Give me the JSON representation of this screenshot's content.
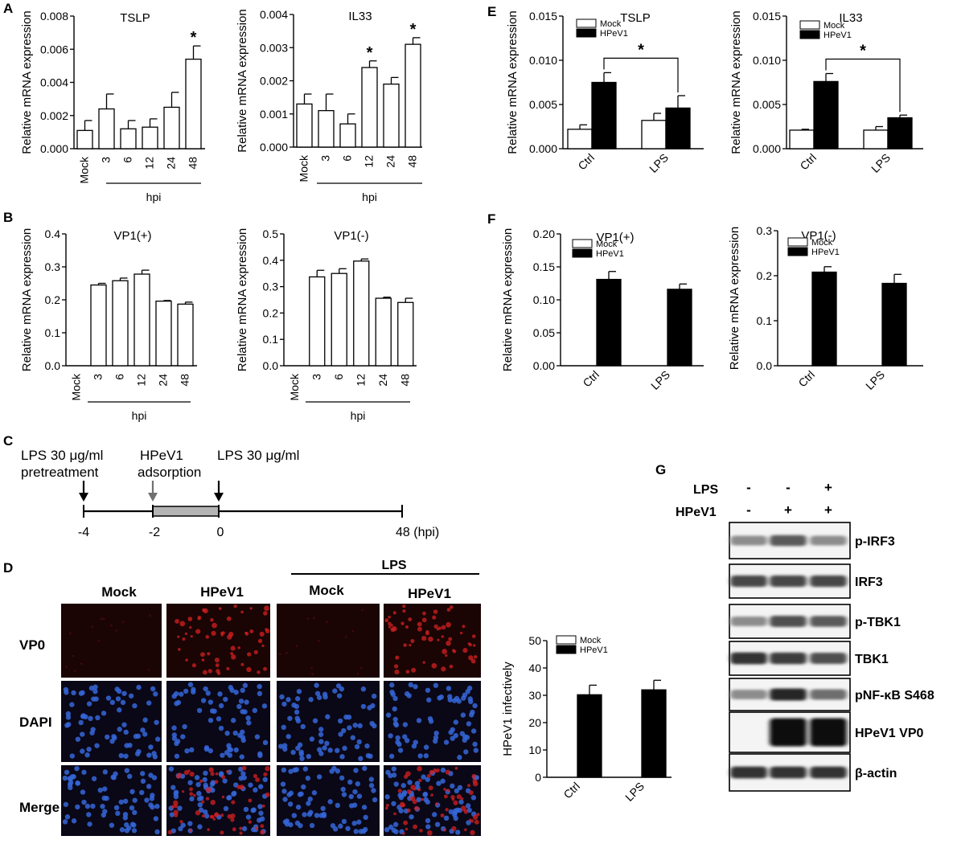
{
  "panels": {
    "A": "A",
    "B": "B",
    "C": "C",
    "D": "D",
    "E": "E",
    "F": "F",
    "G": "G"
  },
  "chart_data": [
    {
      "id": "A1",
      "type": "bar",
      "title": "TSLP",
      "ylabel": "Relative mRNA expression",
      "xlabel": "hpi",
      "categories": [
        "Mock",
        "3",
        "6",
        "12",
        "24",
        "48"
      ],
      "values": [
        0.0011,
        0.0024,
        0.0012,
        0.0013,
        0.0025,
        0.0054
      ],
      "errors": [
        0.0006,
        0.0009,
        0.0005,
        0.0005,
        0.0009,
        0.0008
      ],
      "significance": [
        "",
        "",
        "",
        "",
        "",
        "*"
      ],
      "ylim": [
        0,
        0.008
      ],
      "yticks": [
        "0.000",
        "0.002",
        "0.004",
        "0.006",
        "0.008"
      ]
    },
    {
      "id": "A2",
      "type": "bar",
      "title": "IL33",
      "ylabel": "Relative mRNA expression",
      "xlabel": "hpi",
      "categories": [
        "Mock",
        "3",
        "6",
        "12",
        "24",
        "48"
      ],
      "values": [
        0.0013,
        0.0011,
        0.0007,
        0.0024,
        0.0019,
        0.0031
      ],
      "errors": [
        0.0003,
        0.0005,
        0.0003,
        0.0002,
        0.0002,
        0.0002
      ],
      "significance": [
        "",
        "",
        "",
        "*",
        "",
        "*"
      ],
      "ylim": [
        0,
        0.004
      ],
      "yticks": [
        "0.000",
        "0.001",
        "0.002",
        "0.003",
        "0.004"
      ]
    },
    {
      "id": "B1",
      "type": "bar",
      "title": "VP1(+)",
      "ylabel": "Relative mRNA expression",
      "xlabel": "hpi",
      "categories": [
        "Mock",
        "3",
        "6",
        "12",
        "24",
        "48"
      ],
      "values": [
        0,
        0.245,
        0.258,
        0.278,
        0.196,
        0.187
      ],
      "errors": [
        0,
        0.005,
        0.008,
        0.012,
        0.002,
        0.006
      ],
      "ylim": [
        0,
        0.4
      ],
      "yticks": [
        "0.0",
        "0.1",
        "0.2",
        "0.3",
        "0.4"
      ]
    },
    {
      "id": "B2",
      "type": "bar",
      "title": "VP1(-)",
      "ylabel": "Relative mRNA expression",
      "xlabel": "hpi",
      "categories": [
        "Mock",
        "3",
        "6",
        "12",
        "24",
        "48"
      ],
      "values": [
        0,
        0.337,
        0.35,
        0.397,
        0.256,
        0.24
      ],
      "errors": [
        0,
        0.025,
        0.018,
        0.008,
        0.004,
        0.016
      ],
      "ylim": [
        0,
        0.5
      ],
      "yticks": [
        "0.0",
        "0.1",
        "0.2",
        "0.3",
        "0.4",
        "0.5"
      ]
    },
    {
      "id": "E1",
      "type": "bar",
      "title": "TSLP",
      "ylabel": "Relative mRNA expression",
      "categories": [
        "Ctrl",
        "LPS"
      ],
      "series": [
        {
          "name": "Mock",
          "values": [
            0.0022,
            0.0032
          ],
          "errors": [
            0.0005,
            0.0008
          ]
        },
        {
          "name": "HPeV1",
          "values": [
            0.0075,
            0.0046
          ],
          "errors": [
            0.0011,
            0.0014
          ]
        }
      ],
      "significance_label": "*",
      "ylim": [
        0,
        0.015
      ],
      "yticks": [
        "0.000",
        "0.005",
        "0.010",
        "0.015"
      ]
    },
    {
      "id": "E2",
      "type": "bar",
      "title": "IL33",
      "ylabel": "Relative mRNA expression",
      "categories": [
        "Ctrl",
        "LPS"
      ],
      "series": [
        {
          "name": "Mock",
          "values": [
            0.0021,
            0.0021
          ],
          "errors": [
            0.0001,
            0.0004
          ]
        },
        {
          "name": "HPeV1",
          "values": [
            0.0076,
            0.0035
          ],
          "errors": [
            0.0009,
            0.0003
          ]
        }
      ],
      "significance_label": "*",
      "ylim": [
        0,
        0.015
      ],
      "yticks": [
        "0.000",
        "0.005",
        "0.010",
        "0.015"
      ]
    },
    {
      "id": "F1",
      "type": "bar",
      "title": "VP1(+)",
      "ylabel": "Relative mRNA expression",
      "categories": [
        "Ctrl",
        "LPS"
      ],
      "series": [
        {
          "name": "Mock",
          "values": [
            0,
            0
          ],
          "errors": [
            0,
            0
          ]
        },
        {
          "name": "HPeV1",
          "values": [
            0.131,
            0.116
          ],
          "errors": [
            0.012,
            0.008
          ]
        }
      ],
      "ylim": [
        0,
        0.2
      ],
      "yticks": [
        "0.00",
        "0.05",
        "0.10",
        "0.15",
        "0.20"
      ]
    },
    {
      "id": "F2",
      "type": "bar",
      "title": "VP1(-)",
      "ylabel": "Relative mRNA expression",
      "categories": [
        "Ctrl",
        "LPS"
      ],
      "series": [
        {
          "name": "Mock",
          "values": [
            0,
            0
          ],
          "errors": [
            0,
            0
          ]
        },
        {
          "name": "HPeV1",
          "values": [
            0.208,
            0.183
          ],
          "errors": [
            0.012,
            0.02
          ]
        }
      ],
      "ylim": [
        0,
        0.3
      ],
      "yticks": [
        "0.0",
        "0.1",
        "0.2",
        "0.3"
      ]
    },
    {
      "id": "D2",
      "type": "bar",
      "ylabel": "HPeV1 infectively",
      "categories": [
        "Ctrl",
        "LPS"
      ],
      "series": [
        {
          "name": "Mock",
          "values": [
            0,
            0
          ],
          "errors": [
            0,
            0
          ]
        },
        {
          "name": "HPeV1",
          "values": [
            30.2,
            32.0
          ],
          "errors": [
            3.5,
            3.5
          ]
        }
      ],
      "ylim": [
        0,
        50
      ],
      "yticks": [
        "0",
        "10",
        "20",
        "30",
        "40",
        "50"
      ]
    }
  ],
  "timeline": {
    "event1": [
      "LPS 30 μg/ml",
      "pretreatment"
    ],
    "event2": [
      "HPeV1",
      "adsorption"
    ],
    "event3": "LPS 30 μg/ml",
    "ticks": [
      "-4",
      "-2",
      "0",
      "48 (hpi)"
    ]
  },
  "micro": {
    "lps_header": "LPS",
    "columns": [
      "Mock",
      "HPeV1",
      "Mock",
      "HPeV1"
    ],
    "rows": [
      "VP0",
      "DAPI",
      "Merge"
    ],
    "infected_columns": [
      false,
      true,
      false,
      true
    ]
  },
  "western": {
    "lps_label": "LPS",
    "hpev_label": "HPeV1",
    "lps_signs": [
      "-",
      "-",
      "+"
    ],
    "hpev_signs": [
      "-",
      "+",
      "+"
    ],
    "bands": [
      {
        "label": "p-IRF3",
        "intensity": [
          0.35,
          0.6,
          0.35
        ]
      },
      {
        "label": "IRF3",
        "intensity": [
          0.7,
          0.7,
          0.7
        ]
      },
      {
        "label": "p-TBK1",
        "intensity": [
          0.35,
          0.65,
          0.6
        ]
      },
      {
        "label": "TBK1",
        "intensity": [
          0.8,
          0.75,
          0.65
        ]
      },
      {
        "label": "pNF-κB S468",
        "intensity": [
          0.35,
          0.85,
          0.5
        ]
      },
      {
        "label": "HPeV1 VP0",
        "intensity": [
          0.0,
          1.0,
          1.0
        ]
      },
      {
        "label": "β-actin",
        "intensity": [
          0.8,
          0.8,
          0.8
        ]
      }
    ]
  },
  "colors": {
    "mock_fill": "#ffffff",
    "hpev_fill": "#000000",
    "timeline_grey": "#b4b4b4",
    "grey_arrow": "#707070",
    "vp0_red": "#d42020",
    "dapi_blue": "#3566d8"
  }
}
